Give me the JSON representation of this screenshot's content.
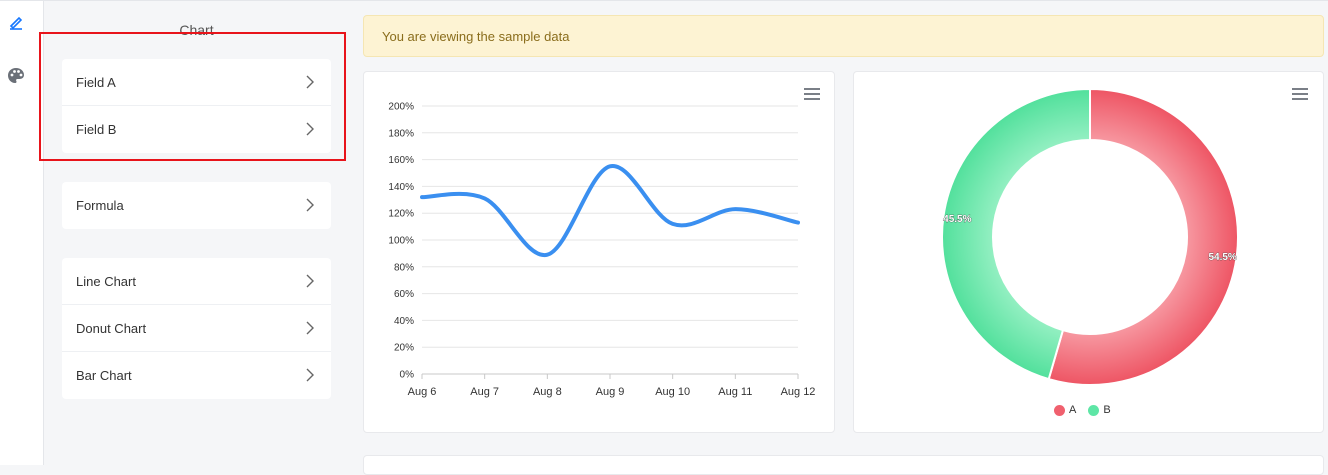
{
  "sidebar": {
    "panel_title": "Chart",
    "groups": [
      {
        "items": [
          {
            "label": "Field A"
          },
          {
            "label": "Field B"
          }
        ]
      },
      {
        "items": [
          {
            "label": "Formula"
          }
        ]
      },
      {
        "items": [
          {
            "label": "Line Chart"
          },
          {
            "label": "Donut Chart"
          },
          {
            "label": "Bar Chart"
          }
        ]
      }
    ]
  },
  "rail": {
    "icons": [
      "pencil-icon",
      "palette-icon"
    ],
    "accent": "#1677ff"
  },
  "notice": {
    "text": "You are viewing the sample data"
  },
  "chart_data": [
    {
      "type": "line",
      "x": [
        "Aug 6",
        "Aug 7",
        "Aug 8",
        "Aug 9",
        "Aug 10",
        "Aug 11",
        "Aug 12"
      ],
      "series": [
        {
          "values": [
            132,
            131,
            89,
            155,
            112,
            123,
            113
          ],
          "color": "#3a8ff0"
        }
      ],
      "y_ticks": [
        "0%",
        "20%",
        "40%",
        "60%",
        "80%",
        "100%",
        "120%",
        "140%",
        "160%",
        "180%",
        "200%"
      ],
      "ylim": [
        0,
        200
      ],
      "grid": true
    },
    {
      "type": "pie",
      "donut": true,
      "slices": [
        {
          "name": "A",
          "value": 54.5,
          "label": "54.5%",
          "color": "#f0606e"
        },
        {
          "name": "B",
          "value": 45.5,
          "label": "45.5%",
          "color": "#5ee6a6"
        }
      ],
      "legend": "bottom"
    }
  ]
}
